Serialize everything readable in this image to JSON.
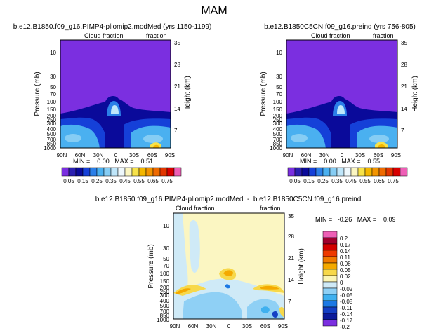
{
  "figure_title": "MAM",
  "colors": {
    "plot_background": "#7B2FE0",
    "contour_scale": [
      "#7a2ee0",
      "#2a1fb0",
      "#0a0a9a",
      "#1540d8",
      "#2b7fe8",
      "#4ab0f0",
      "#86cdf4",
      "#bfe6fa",
      "#eef8fd",
      "#fbf6c2",
      "#f7e24a",
      "#f4b700",
      "#f29400",
      "#ee6a00",
      "#e23600",
      "#d80000",
      "#ee5fb6"
    ],
    "difference_scale": [
      "#ee5fb6",
      "#a0002e",
      "#d30000",
      "#ee3a00",
      "#f07a00",
      "#f4a900",
      "#f7d84a",
      "#fbf5b5",
      "#cfeaf7",
      "#8fd0f5",
      "#3fb0ef",
      "#1c79e4",
      "#143fc4",
      "#0c1a9a",
      "#7b2fe0"
    ]
  },
  "chart_data": [
    {
      "type": "heatmap",
      "title": "b.e12.B1850.f09_g16.PIMP4-pliomip2.modMed (yrs 1150-1199)",
      "center_label": "Cloud fraction",
      "right_label": "fraction",
      "xlabel": "",
      "ylabel": "Pressure (mb)",
      "y2label": "Height (km)",
      "x_ticks": [
        "90N",
        "60N",
        "30N",
        "0",
        "30S",
        "60S",
        "90S"
      ],
      "y_ticks": [
        "10",
        "30",
        "50",
        "70",
        "100",
        "150",
        "200",
        "250",
        "300",
        "400",
        "500",
        "700",
        "850",
        "1000"
      ],
      "y2_ticks": [
        "35",
        "28",
        "21",
        "14",
        "7"
      ],
      "ylim": [
        1000,
        5
      ],
      "stats": "MIN =    0.00   MAX =    0.51",
      "colorbar_labels": [
        "0.05",
        "0.15",
        "0.25",
        "0.35",
        "0.45",
        "0.55",
        "0.65",
        "0.75"
      ],
      "min": 0.0,
      "max": 0.51
    },
    {
      "type": "heatmap",
      "title": "b.e12.B1850C5CN.f09_g16.preind (yrs 756-805)",
      "center_label": "Cloud fraction",
      "right_label": "fraction",
      "xlabel": "",
      "ylabel": "Pressure (mb)",
      "y2label": "Height (km)",
      "x_ticks": [
        "90N",
        "60N",
        "30N",
        "0",
        "30S",
        "60S",
        "90S"
      ],
      "y_ticks": [
        "10",
        "30",
        "50",
        "70",
        "100",
        "150",
        "200",
        "250",
        "300",
        "400",
        "500",
        "700",
        "850",
        "1000"
      ],
      "y2_ticks": [
        "35",
        "28",
        "21",
        "14",
        "7"
      ],
      "ylim": [
        1000,
        5
      ],
      "stats": "MIN =    0.00   MAX =    0.55",
      "colorbar_labels": [
        "0.05",
        "0.15",
        "0.25",
        "0.35",
        "0.45",
        "0.55",
        "0.65",
        "0.75"
      ],
      "min": 0.0,
      "max": 0.55
    },
    {
      "type": "heatmap",
      "title": "b.e12.B1850.f09_g16.PIMP4-pliomip2.modMed  -  b.e12.B1850C5CN.f09_g16.preind",
      "center_label": "Cloud fraction",
      "right_label": "fraction",
      "xlabel": "",
      "ylabel": "Pressure (mb)",
      "y2label": "Height (km)",
      "x_ticks": [
        "90N",
        "60N",
        "30N",
        "0",
        "30S",
        "60S",
        "90S"
      ],
      "y_ticks": [
        "10",
        "30",
        "50",
        "70",
        "100",
        "150",
        "200",
        "250",
        "300",
        "400",
        "500",
        "700",
        "850",
        "1000"
      ],
      "y2_ticks": [
        "35",
        "28",
        "21",
        "14",
        "7"
      ],
      "ylim": [
        1000,
        5
      ],
      "stats": "MIN =   -0.26   MAX =    0.09",
      "colorbar_labels": [
        "0.2",
        "0.17",
        "0.14",
        "0.11",
        "0.08",
        "0.05",
        "0.02",
        "0",
        "-0.02",
        "-0.05",
        "-0.08",
        "-0.11",
        "-0.14",
        "-0.17",
        "-0.2"
      ],
      "min": -0.26,
      "max": 0.09
    }
  ]
}
